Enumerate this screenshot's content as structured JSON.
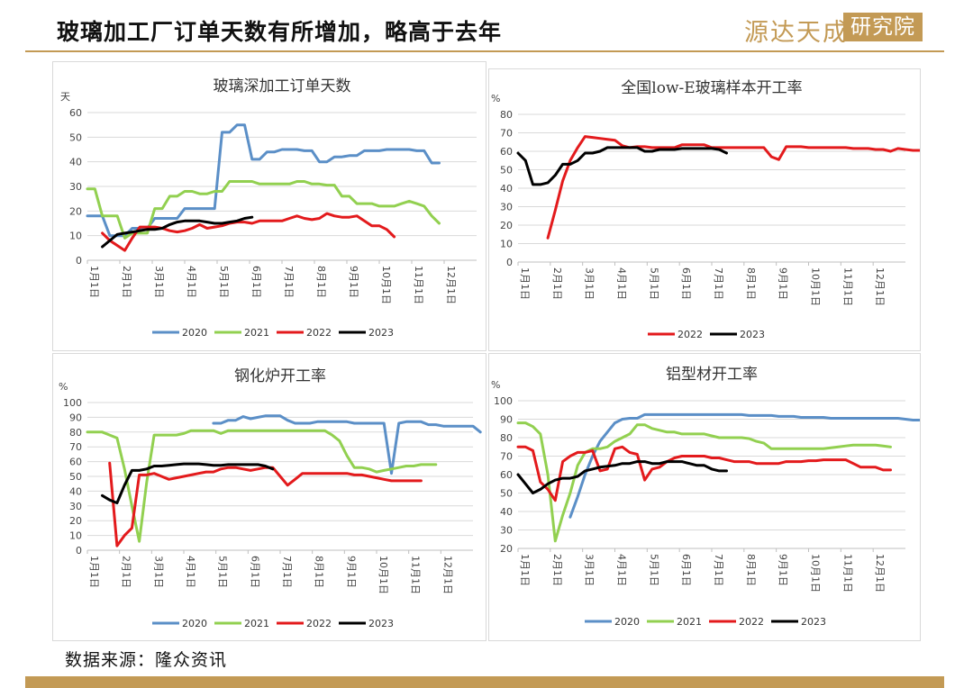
{
  "header": {
    "title": "玻璃加工厂订单天数有所增加，略高于去年",
    "logo_text": "源达天成",
    "logo_box_text": "研究院"
  },
  "footer": {
    "source": "数据来源：隆众资讯"
  },
  "months": [
    "1月1日",
    "2月1日",
    "3月1日",
    "4月1日",
    "5月1日",
    "6月1日",
    "7月1日",
    "8月1日",
    "9月1日",
    "10月1日",
    "11月1日",
    "12月1日"
  ],
  "colors": {
    "2020": "#5b8fc7",
    "2021": "#92d050",
    "2022": "#e31a1c",
    "2023": "#000000"
  },
  "chart_data": [
    {
      "type": "line",
      "title": "玻璃深加工订单天数",
      "unit": "天",
      "ylim": [
        0,
        60
      ],
      "ytick_step": 10,
      "x_domain_weeks": [
        0,
        52
      ],
      "series": [
        {
          "name": "2020",
          "start": 0,
          "values": [
            18,
            18,
            18,
            10,
            10,
            10,
            13,
            13,
            13,
            17,
            17,
            17,
            17,
            21,
            21,
            21,
            21,
            21,
            52,
            52,
            55,
            55,
            41,
            41,
            44,
            44,
            45,
            45,
            45,
            44.5,
            44.5,
            40,
            40,
            42,
            42,
            42.5,
            42.5,
            44.5,
            44.5,
            44.5,
            45,
            45,
            45,
            45,
            44.5,
            44.5,
            39.5,
            39.5
          ]
        },
        {
          "name": "2021",
          "start": 0,
          "values": [
            29,
            29,
            18,
            18,
            18,
            9,
            11,
            11,
            11,
            21,
            21,
            26,
            26,
            28,
            28,
            27,
            27,
            28,
            28,
            32,
            32,
            32,
            32,
            31,
            31,
            31,
            31,
            31,
            32,
            32,
            31,
            31,
            30.5,
            30.5,
            26,
            26,
            23,
            23,
            23,
            22,
            22,
            22,
            23,
            24,
            23,
            22,
            18,
            15
          ]
        },
        {
          "name": "2022",
          "start": 2,
          "values": [
            11,
            8,
            6,
            4,
            9,
            13.5,
            13.5,
            13.5,
            13,
            12,
            11.5,
            12,
            13,
            14.5,
            13,
            13.5,
            14,
            15,
            15.5,
            15.5,
            15,
            16,
            16,
            16,
            16,
            17,
            18,
            17,
            16.5,
            17,
            19,
            18,
            17.5,
            17.5,
            18,
            16,
            14,
            14,
            12.5,
            9.5
          ]
        },
        {
          "name": "2023",
          "start": 2,
          "values": [
            5.5,
            8,
            10.5,
            11,
            11.5,
            12,
            12.5,
            12.5,
            13,
            14.5,
            15.5,
            16,
            16,
            16,
            15.5,
            15,
            15,
            15.5,
            16,
            17,
            17.5
          ]
        }
      ]
    },
    {
      "type": "line",
      "title": "全国low-E玻璃样本开工率",
      "unit": "%",
      "ylim": [
        0,
        80
      ],
      "ytick_step": 10,
      "x_domain_weeks": [
        0,
        52
      ],
      "series": [
        {
          "name": "2022",
          "start": 4,
          "values": [
            13,
            28,
            44,
            55,
            62,
            68,
            67.5,
            67,
            66.5,
            66,
            63,
            62,
            62.5,
            62.5,
            62,
            62,
            62,
            62,
            63.5,
            63.5,
            63.5,
            63.5,
            62,
            62,
            62,
            62,
            62,
            62,
            62,
            62,
            57,
            55.5,
            62.5,
            62.5,
            62.5,
            62,
            62,
            62,
            62,
            62,
            62,
            61.5,
            61.5,
            61.5,
            61,
            61,
            60,
            61.5,
            61,
            60.5,
            60.5
          ]
        },
        {
          "name": "2023",
          "start": 0,
          "values": [
            59,
            55,
            42,
            42,
            43,
            47,
            53,
            53,
            55,
            59,
            59,
            60,
            62,
            62,
            62,
            62,
            62,
            60,
            60,
            61,
            61,
            61,
            61.5,
            61.5,
            61.5,
            61.5,
            61.5,
            61,
            59
          ]
        }
      ]
    },
    {
      "type": "line",
      "title": "钢化炉开工率",
      "unit": "%",
      "ylim": [
        0,
        100
      ],
      "ytick_step": 10,
      "x_domain_weeks": [
        0,
        52
      ],
      "series": [
        {
          "name": "2020",
          "start": 17,
          "values": [
            86,
            86,
            88,
            88,
            90.5,
            89,
            90,
            91,
            91,
            91,
            88,
            86,
            86,
            86,
            87,
            87,
            87,
            87,
            87,
            86,
            86,
            86,
            86,
            86,
            52,
            86,
            87,
            87,
            87,
            85,
            85,
            84,
            84,
            84,
            84,
            84,
            80
          ]
        },
        {
          "name": "2021",
          "start": 0,
          "values": [
            80,
            80,
            80,
            78,
            76,
            55,
            30,
            6,
            46,
            78,
            78,
            78,
            78,
            79,
            81,
            81,
            81,
            81,
            79,
            81,
            81,
            81,
            81,
            81,
            81,
            81,
            81,
            81,
            81,
            81,
            81,
            81,
            81,
            78,
            74,
            64,
            56,
            56,
            55,
            53,
            54,
            55,
            56,
            57,
            57,
            58,
            58,
            58
          ]
        },
        {
          "name": "2022",
          "start": 3,
          "values": [
            59,
            3,
            10,
            15,
            51,
            51,
            52,
            50,
            48,
            49,
            50,
            51,
            52,
            53,
            53,
            55,
            56,
            56,
            55,
            54,
            55,
            56,
            56,
            50,
            44,
            48,
            52,
            52,
            52,
            52,
            52,
            52,
            52,
            51,
            51,
            50,
            49,
            48,
            47,
            47,
            47,
            47,
            47
          ]
        },
        {
          "name": "2023",
          "start": 2,
          "values": [
            37,
            34,
            32,
            44,
            54,
            54,
            55,
            57,
            57,
            57.5,
            58,
            58.5,
            58.5,
            58.5,
            58,
            57.5,
            57.5,
            58,
            58,
            58,
            58,
            58,
            57,
            55
          ]
        }
      ]
    },
    {
      "type": "line",
      "title": "铝型材开工率",
      "unit": "%",
      "ylim": [
        20,
        100
      ],
      "ytick_step": 10,
      "x_domain_weeks": [
        0,
        52
      ],
      "series": [
        {
          "name": "2020",
          "start": 7,
          "values": [
            37,
            48,
            60,
            70,
            78,
            83,
            88,
            90,
            90.5,
            90.5,
            92.5,
            92.5,
            92.5,
            92.5,
            92.5,
            92.5,
            92.5,
            92.5,
            92.5,
            92.5,
            92.5,
            92.5,
            92.5,
            92.5,
            92,
            92,
            92,
            92,
            91.5,
            91.5,
            91.5,
            91,
            91,
            91,
            91,
            90.5,
            90.5,
            90.5,
            90.5,
            90.5,
            90.5,
            90.5,
            90.5,
            90.5,
            90.5,
            90,
            89.5,
            89.5
          ]
        },
        {
          "name": "2021",
          "start": 0,
          "values": [
            88,
            88,
            86,
            82,
            60,
            24,
            38,
            50,
            65,
            72,
            74,
            74,
            75,
            78,
            80,
            82,
            87,
            87,
            85,
            84,
            83,
            83,
            82,
            82,
            82,
            82,
            81,
            80,
            80,
            80,
            80,
            79.5,
            78,
            77,
            74,
            74,
            74,
            74,
            74,
            74,
            74,
            74,
            74.5,
            75,
            75.5,
            76,
            76,
            76,
            76,
            75.5,
            75
          ]
        },
        {
          "name": "2022",
          "start": 0,
          "values": [
            75,
            75,
            73,
            56,
            52,
            46,
            67,
            70,
            72,
            72,
            73,
            62,
            63,
            74,
            75,
            72,
            71,
            57,
            63,
            64,
            67,
            69,
            70,
            70,
            70,
            70,
            69,
            69,
            68,
            67,
            67,
            67,
            66,
            66,
            66,
            66,
            67,
            67,
            67,
            67.5,
            67.5,
            68,
            68,
            68,
            68,
            66,
            64,
            64,
            64,
            62.5,
            62.5
          ]
        },
        {
          "name": "2023",
          "start": 0,
          "values": [
            60,
            55,
            50,
            52,
            55,
            57,
            58,
            58,
            59,
            62,
            63,
            64,
            64.5,
            65,
            66,
            66,
            67,
            67,
            66,
            66,
            67,
            67,
            67,
            66,
            65,
            65,
            63,
            62,
            62
          ]
        }
      ]
    }
  ]
}
